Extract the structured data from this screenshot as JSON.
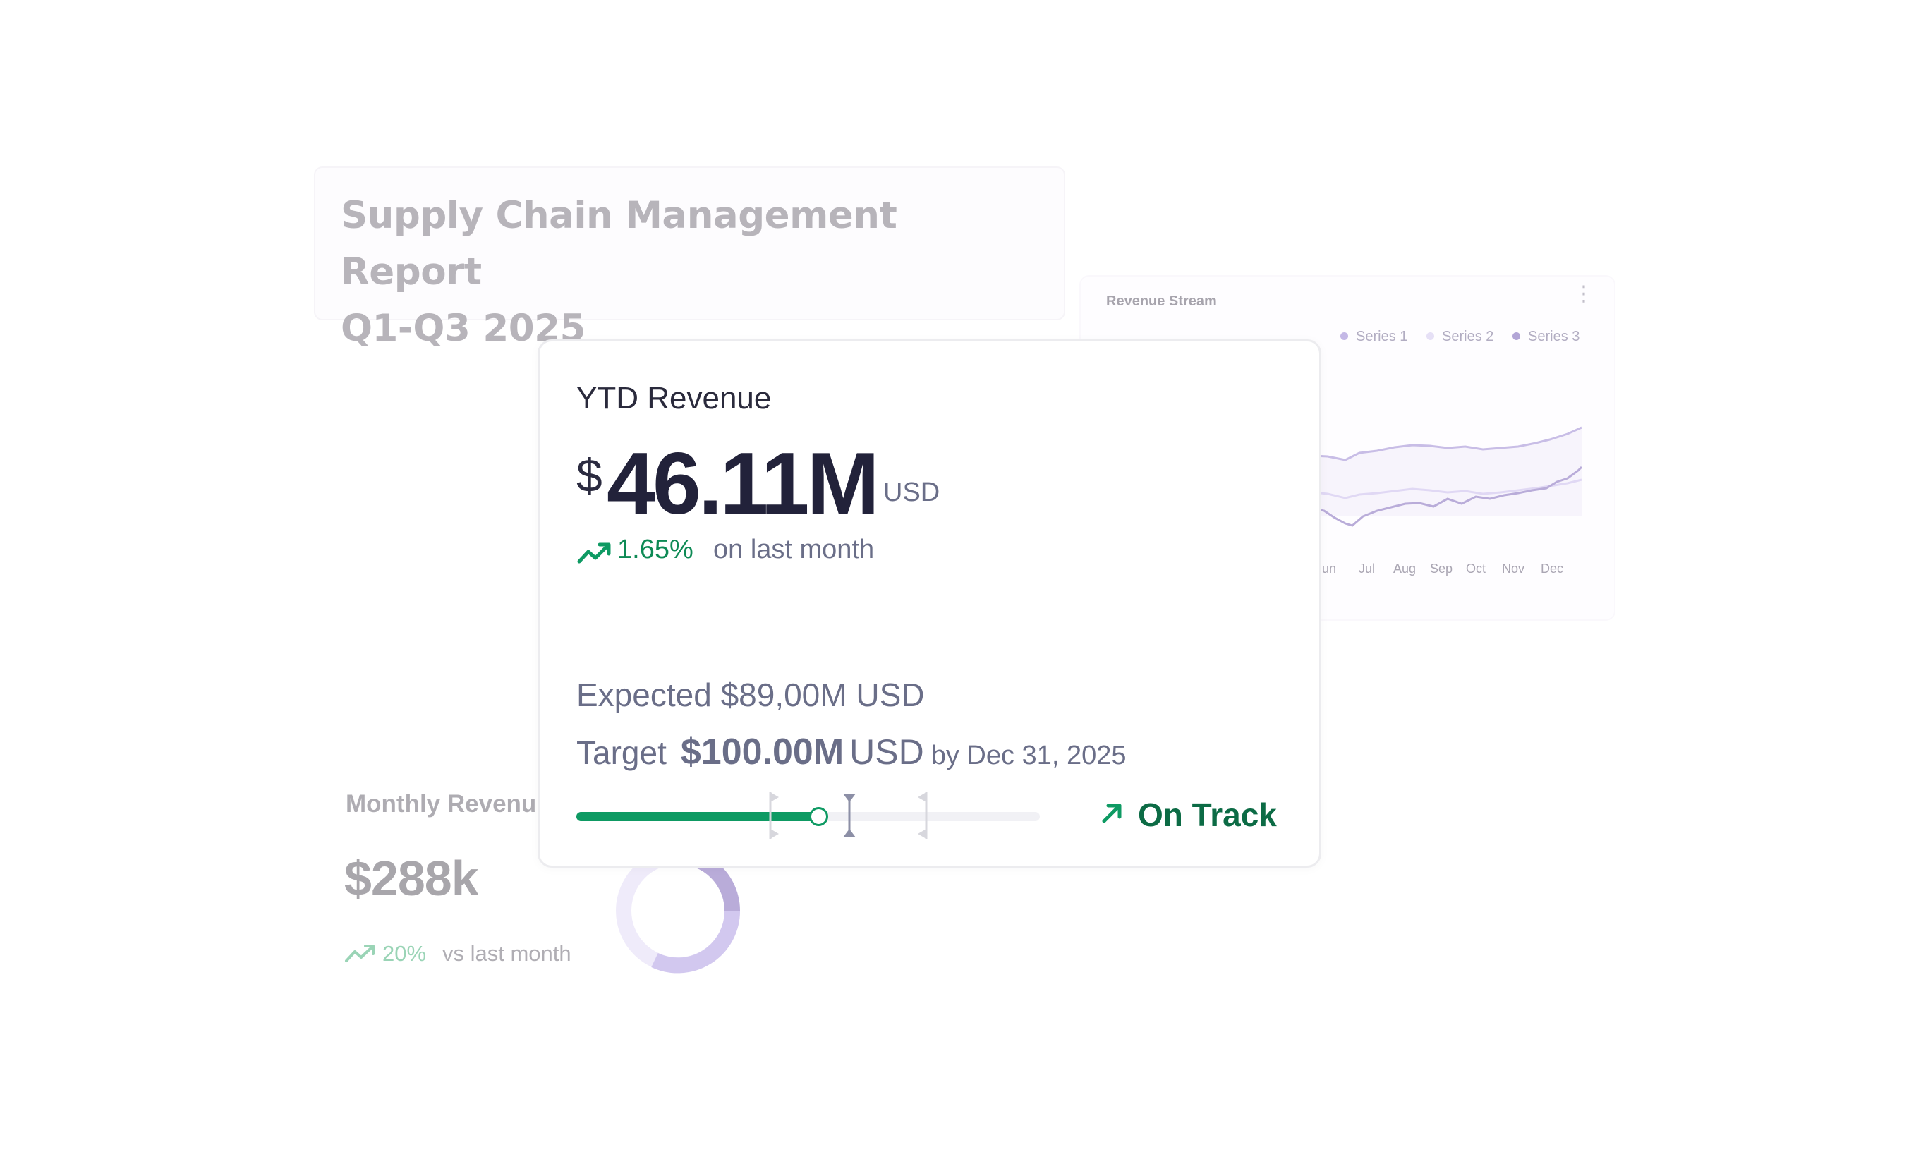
{
  "report": {
    "title_line1": "Supply Chain Management Report",
    "title_line2": "Q1-Q3 2025"
  },
  "revenue_stream": {
    "title": "Revenue Stream",
    "legend": [
      {
        "name": "Series 1",
        "color": "#c4b8e6"
      },
      {
        "name": "Series 2",
        "color": "#e6e0f6"
      },
      {
        "name": "Series 3",
        "color": "#b2a5d6"
      }
    ],
    "months_visible": [
      "un",
      "Jul",
      "Aug",
      "Sep",
      "Oct",
      "Nov",
      "Dec"
    ]
  },
  "monthly_revenue": {
    "label": "Monthly Revenu",
    "value": "$288k",
    "change": "20%",
    "caption": "vs last month",
    "trend_icon": "trending-up-icon"
  },
  "ytd": {
    "title": "YTD Revenue",
    "currency_symbol": "$",
    "amount": "46.11M",
    "unit": "USD",
    "change": "1.65%",
    "change_caption": "on last month",
    "expected_label": "Expected $89,00M USD",
    "target_label": "Target",
    "target_value": "$100.00M",
    "target_unit": "USD",
    "target_date": "by Dec 31, 2025",
    "progress_fraction": 0.52,
    "status": "On Track",
    "status_icon": "arrow-up-right-icon",
    "accent_color": "#0e9a63"
  }
}
